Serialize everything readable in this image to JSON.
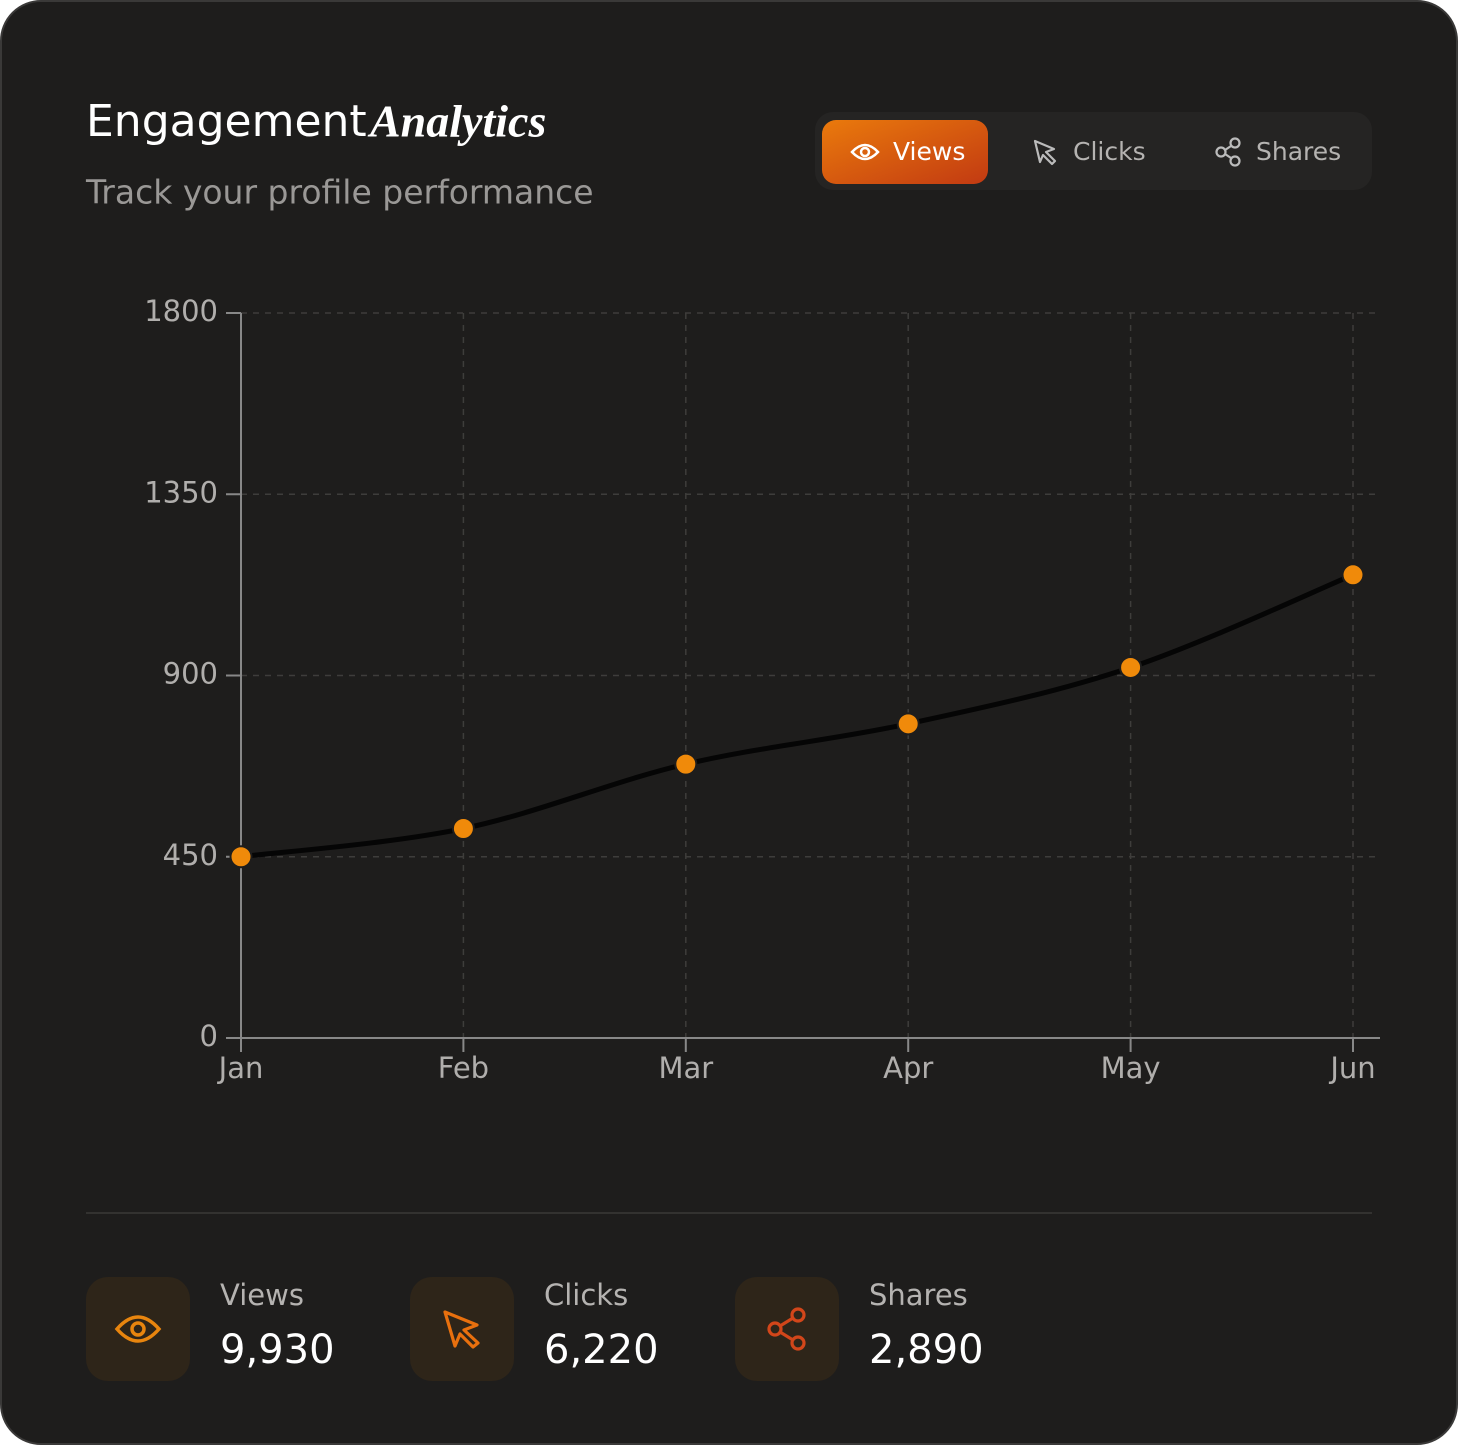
{
  "header": {
    "title": "Engagement",
    "title_emphasis": "Analytics",
    "subtitle": "Track your profile performance"
  },
  "tabs": [
    "Views",
    "Clicks",
    "Shares"
  ],
  "chart_data": {
    "type": "line",
    "categories": [
      "Jan",
      "Feb",
      "Mar",
      "Apr",
      "May",
      "Jun"
    ],
    "series": [
      {
        "name": "Views",
        "color": "#f08a0a",
        "values": [
          450,
          520,
          680,
          780,
          920,
          1150
        ]
      }
    ],
    "ylim": [
      0,
      1800
    ],
    "yticks": [
      0,
      450,
      900,
      1350,
      1800
    ],
    "grid": true
  },
  "stats": [
    {
      "label": "Views",
      "value": "9,930"
    },
    {
      "label": "Clicks",
      "value": "6,220"
    },
    {
      "label": "Shares",
      "value": "2,890"
    }
  ]
}
